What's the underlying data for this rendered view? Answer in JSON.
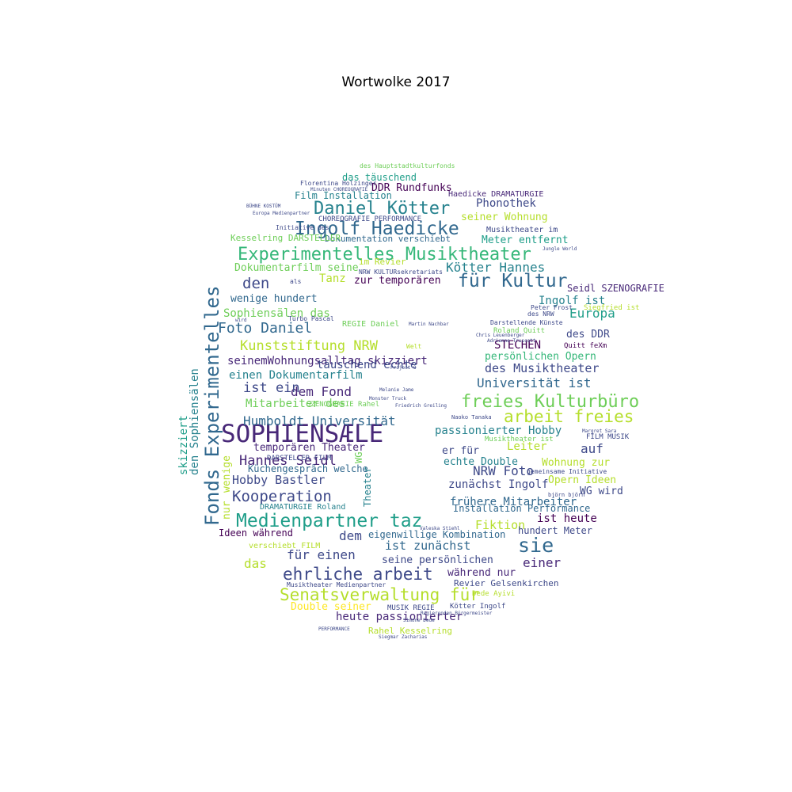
{
  "title": "Wortwolke 2017",
  "palette": [
    "#440154",
    "#482878",
    "#3e4989",
    "#31688e",
    "#26828e",
    "#1f9e89",
    "#35b779",
    "#6ece58",
    "#b5de2b",
    "#fde725"
  ],
  "words": [
    {
      "text": "SOPHIENSÆLE",
      "color": "#482878"
    },
    {
      "text": "Experimentelles Musiktheater",
      "color": "#35b779"
    },
    {
      "text": "Medienpartner taz",
      "color": "#1f9e89"
    },
    {
      "text": "Ingolf Haedicke",
      "color": "#31688e"
    },
    {
      "text": "Daniel Kötter",
      "color": "#26828e"
    },
    {
      "text": "Fonds Experimentelles",
      "color": "#31688e"
    },
    {
      "text": "freies Kulturbüro",
      "color": "#6ece58"
    },
    {
      "text": "für Kultur",
      "color": "#31688e"
    },
    {
      "text": "Senatsverwaltung für",
      "color": "#b5de2b"
    },
    {
      "text": "ehrliche arbeit",
      "color": "#3e4989"
    },
    {
      "text": "arbeit freies",
      "color": "#b5de2b"
    },
    {
      "text": "sie",
      "color": "#31688e"
    },
    {
      "text": "Kooperation",
      "color": "#3e4989"
    },
    {
      "text": "Hannes Seidl",
      "color": "#482878"
    },
    {
      "text": "Foto Daniel",
      "color": "#31688e"
    },
    {
      "text": "Kunststiftung NRW",
      "color": "#b5de2b"
    },
    {
      "text": "Humboldt Universität",
      "color": "#31688e"
    },
    {
      "text": "den",
      "color": "#3e4989"
    },
    {
      "text": "Europa",
      "color": "#1f9e89"
    },
    {
      "text": "dem Fond",
      "color": "#482878"
    },
    {
      "text": "ist ein",
      "color": "#3e4989"
    },
    {
      "text": "Mitarbeiter des",
      "color": "#6ece58"
    },
    {
      "text": "Kötter Hannes",
      "color": "#26828e"
    },
    {
      "text": "NRW Foto",
      "color": "#3e4989"
    },
    {
      "text": "Universität ist",
      "color": "#31688e"
    },
    {
      "text": "des Musiktheater",
      "color": "#3e4989"
    },
    {
      "text": "Hobby Bastler",
      "color": "#3e4989"
    },
    {
      "text": "Dokumentarfilm seine",
      "color": "#6ece58"
    },
    {
      "text": "Sophiensälen das",
      "color": "#6ece58"
    },
    {
      "text": "den Sophiensälen",
      "color": "#26828e"
    },
    {
      "text": "skizziert",
      "color": "#1f9e89"
    },
    {
      "text": "seinemWohnungsalltag skizziert",
      "color": "#482878"
    },
    {
      "text": "einen Dokumentarfilm",
      "color": "#26828e"
    },
    {
      "text": "wenige hundert",
      "color": "#31688e"
    },
    {
      "text": "Tanz",
      "color": "#b5de2b"
    },
    {
      "text": "zur temporären",
      "color": "#440154"
    },
    {
      "text": "täuschend echte",
      "color": "#3e4989"
    },
    {
      "text": "temporären Theater",
      "color": "#482878"
    },
    {
      "text": "Küchengespräch welche",
      "color": "#31688e"
    },
    {
      "text": "passionierter Hobby",
      "color": "#26828e"
    },
    {
      "text": "frühere Mitarbeiter",
      "color": "#31688e"
    },
    {
      "text": "zunächst Ingolf",
      "color": "#3e4989"
    },
    {
      "text": "Fiktion",
      "color": "#b5de2b"
    },
    {
      "text": "ist zunächst",
      "color": "#31688e"
    },
    {
      "text": "einer",
      "color": "#482878"
    },
    {
      "text": "dem",
      "color": "#3e4989"
    },
    {
      "text": "für einen",
      "color": "#3e4989"
    },
    {
      "text": "das",
      "color": "#b5de2b"
    },
    {
      "text": "heute passionierter",
      "color": "#482878"
    },
    {
      "text": "Double seiner",
      "color": "#fde725"
    },
    {
      "text": "Rahel Kesselring",
      "color": "#b5de2b"
    },
    {
      "text": "während nur",
      "color": "#482878"
    },
    {
      "text": "seine persönlichen",
      "color": "#3e4989"
    },
    {
      "text": "eigenwillige Kombination",
      "color": "#31688e"
    },
    {
      "text": "Ideen während",
      "color": "#440154"
    },
    {
      "text": "verschiebt FILM",
      "color": "#b5de2b"
    },
    {
      "text": "DDR Rundfunks",
      "color": "#440154"
    },
    {
      "text": "das täuschend",
      "color": "#1f9e89"
    },
    {
      "text": "Film Installation",
      "color": "#26828e"
    },
    {
      "text": "Phonothek",
      "color": "#3e4989"
    },
    {
      "text": "seiner Wohnung",
      "color": "#b5de2b"
    },
    {
      "text": "Meter entfernt",
      "color": "#1f9e89"
    },
    {
      "text": "Dokumentation verschiebt",
      "color": "#31688e"
    },
    {
      "text": "STECHEN",
      "color": "#440154"
    },
    {
      "text": "persönlichen Opern",
      "color": "#35b779"
    },
    {
      "text": "des DDR",
      "color": "#3e4989"
    },
    {
      "text": "Ingolf ist",
      "color": "#26828e"
    },
    {
      "text": "Seidl SZENOGRAFIE",
      "color": "#482878"
    },
    {
      "text": "Leiter",
      "color": "#b5de2b"
    },
    {
      "text": "auf",
      "color": "#3e4989"
    },
    {
      "text": "er für",
      "color": "#3e4989"
    },
    {
      "text": "echte Double",
      "color": "#26828e"
    },
    {
      "text": "Wohnung zur",
      "color": "#b5de2b"
    },
    {
      "text": "Opern Ideen",
      "color": "#b5de2b"
    },
    {
      "text": "WG wird",
      "color": "#3e4989"
    },
    {
      "text": "ist heute",
      "color": "#440154"
    },
    {
      "text": "hundert Meter",
      "color": "#3e4989"
    },
    {
      "text": "Installation Performance",
      "color": "#31688e"
    },
    {
      "text": "Revier Gelsenkirchen",
      "color": "#3e4989"
    },
    {
      "text": "Kesselring DARSTELLER",
      "color": "#6ece58"
    },
    {
      "text": "Musiktheater im",
      "color": "#3e4989"
    },
    {
      "text": "Haedicke DRAMATURGIE",
      "color": "#482878"
    },
    {
      "text": "CHOREOGRAFIE PERFORMANCE",
      "color": "#3e4989"
    },
    {
      "text": "des Hauptstadtkulturfonds",
      "color": "#6ece58"
    },
    {
      "text": "Florentina Holzinger",
      "color": "#3e4989"
    },
    {
      "text": "im Revier",
      "color": "#b5de2b"
    },
    {
      "text": "NRW KULTURsekretariats",
      "color": "#3e4989"
    },
    {
      "text": "REGIE Daniel",
      "color": "#6ece58"
    },
    {
      "text": "SZENOGRAFIE Rahel",
      "color": "#6ece58"
    },
    {
      "text": "DARSTELLER FILM",
      "color": "#3e4989"
    },
    {
      "text": "DRAMATURGIE Roland",
      "color": "#26828e"
    },
    {
      "text": "MUSIK REGIE",
      "color": "#3e4989"
    },
    {
      "text": "Kötter Ingolf",
      "color": "#3e4989"
    },
    {
      "text": "Musiktheater Medienpartner",
      "color": "#3e4989"
    },
    {
      "text": "FILM MUSIK",
      "color": "#3e4989"
    },
    {
      "text": "gemeinsame Initiative",
      "color": "#3e4989"
    },
    {
      "text": "Musiktheater ist",
      "color": "#6ece58"
    },
    {
      "text": "Darstellende Künste",
      "color": "#3e4989"
    },
    {
      "text": "Roland Quitt",
      "color": "#6ece58"
    },
    {
      "text": "Quitt feXm",
      "color": "#440154"
    },
    {
      "text": "Peter Frost",
      "color": "#3e4989"
    },
    {
      "text": "Siegfried ist",
      "color": "#b5de2b"
    },
    {
      "text": "des NRW",
      "color": "#3e4989"
    },
    {
      "text": "Theater",
      "color": "#26828e"
    },
    {
      "text": "WG",
      "color": "#6ece58"
    },
    {
      "text": "nur",
      "color": "#b5de2b"
    },
    {
      "text": "wenige",
      "color": "#b5de2b"
    },
    {
      "text": "Turbo Pascal",
      "color": "#3e4989"
    },
    {
      "text": "Welt",
      "color": "#b5de2b"
    },
    {
      "text": "Project O",
      "color": "#3e4989"
    },
    {
      "text": "Monster Truck",
      "color": "#3e4989"
    },
    {
      "text": "Naoko Tanaka",
      "color": "#3e4989"
    },
    {
      "text": "björn björn",
      "color": "#3e4989"
    },
    {
      "text": "Dede Ayivi",
      "color": "#b5de2b"
    },
    {
      "text": "Simone Dede",
      "color": "#3e4989"
    },
    {
      "text": "Regierenden Bürgermeister",
      "color": "#3e4989"
    },
    {
      "text": "Siegmar Zacharias",
      "color": "#3e4989"
    },
    {
      "text": "PERFORMANCE",
      "color": "#3e4989"
    },
    {
      "text": "BÜHNE KOSTÜM",
      "color": "#3e4989"
    },
    {
      "text": "Europa Medienpartner",
      "color": "#3e4989"
    },
    {
      "text": "Minuten CHOREOGRAFIE",
      "color": "#3e4989"
    },
    {
      "text": "Initiative des",
      "color": "#3e4989"
    },
    {
      "text": "als",
      "color": "#3e4989"
    },
    {
      "text": "wird",
      "color": "#3e4989"
    },
    {
      "text": "Jungle World",
      "color": "#3e4989"
    },
    {
      "text": "Adrienne Truscott",
      "color": "#3e4989"
    },
    {
      "text": "Chris Leuenberger",
      "color": "#3e4989"
    },
    {
      "text": "Friedrich Greiling",
      "color": "#3e4989"
    },
    {
      "text": "Margret Sara",
      "color": "#3e4989"
    },
    {
      "text": "Valeska Stiehl",
      "color": "#3e4989"
    },
    {
      "text": "Melanie Jame",
      "color": "#3e4989"
    },
    {
      "text": "Martin Nachbar",
      "color": "#3e4989"
    }
  ]
}
